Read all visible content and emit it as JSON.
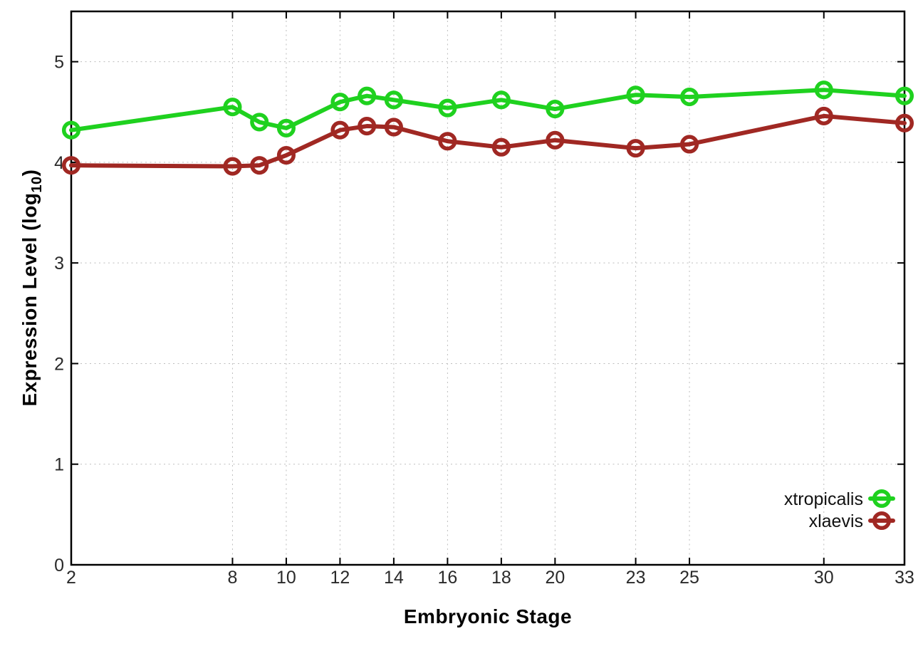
{
  "figure": {
    "background": "#ffffff",
    "ylabel_prefix": "Expression Level (log",
    "ylabel_subscript": "10",
    "ylabel_suffix": ")"
  },
  "chart_data": {
    "type": "line",
    "title": "",
    "xlabel": "Embryonic Stage",
    "ylabel": "Expression Level (log10)",
    "x": [
      2,
      8,
      9,
      10,
      12,
      13,
      14,
      16,
      18,
      20,
      23,
      25,
      30,
      33
    ],
    "series": [
      {
        "name": "xtropicalis",
        "color": "#1fd11f",
        "values": [
          4.32,
          4.55,
          4.4,
          4.34,
          4.6,
          4.66,
          4.62,
          4.54,
          4.62,
          4.53,
          4.67,
          4.65,
          4.72,
          4.66
        ]
      },
      {
        "name": "xlaevis",
        "color": "#a02823",
        "values": [
          3.97,
          3.96,
          3.97,
          4.07,
          4.32,
          4.36,
          4.35,
          4.21,
          4.15,
          4.22,
          4.14,
          4.18,
          4.46,
          4.39
        ]
      }
    ],
    "xlim": [
      2,
      33
    ],
    "ylim": [
      0,
      5.5
    ],
    "xticks": [
      2,
      8,
      10,
      12,
      14,
      16,
      18,
      20,
      23,
      25,
      30,
      33
    ],
    "yticks": [
      0,
      1,
      2,
      3,
      4,
      5
    ],
    "grid": true,
    "grid_style": "dotted",
    "legend_position": "inside-bottom-right",
    "marker": "open-circle",
    "line_width": 6
  }
}
